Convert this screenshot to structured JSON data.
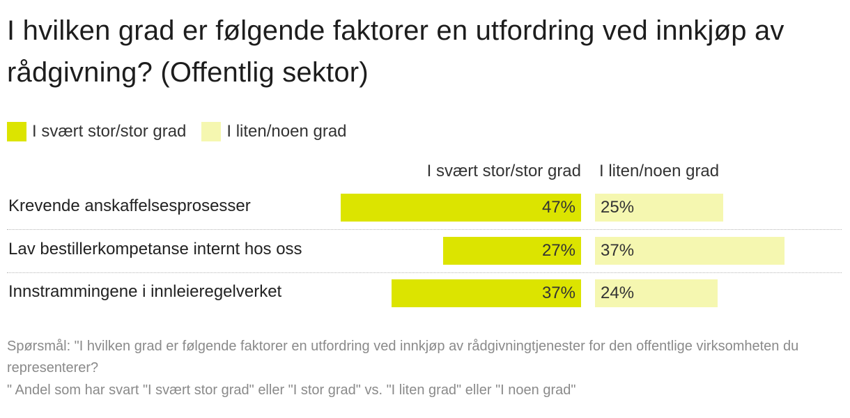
{
  "title": "I hvilken grad er følgende faktorer en utfordring ved innkjøp av rådgivning? (Offentlig sektor)",
  "legend": [
    {
      "label": "I svært stor/stor grad",
      "color": "#dce400"
    },
    {
      "label": "I liten/noen grad",
      "color": "#f5f7b0"
    }
  ],
  "column_headers": {
    "left": "I svært stor/stor grad",
    "right": "I liten/noen grad"
  },
  "chart_data": {
    "type": "bar",
    "categories": [
      "Krevende anskaffelsesprosesser",
      "Lav bestillerkompetanse internt hos oss",
      "Innstrammingene i innleieregelverket"
    ],
    "series": [
      {
        "name": "I svært stor/stor grad",
        "values": [
          47,
          27,
          37
        ],
        "labels": [
          "47%",
          "27%",
          "37%"
        ],
        "color": "#dce400"
      },
      {
        "name": "I liten/noen grad",
        "values": [
          25,
          37,
          24
        ],
        "labels": [
          "25%",
          "37%",
          "24%"
        ],
        "color": "#f5f7b0"
      }
    ],
    "unit": "%"
  },
  "notes": {
    "question": "Spørsmål: \"I hvilken grad er følgende faktorer en utfordring ved innkjøp av rådgivningtjenester for den offentlige virksomheten du representerer?",
    "definition": "\" Andel som har svart \"I svært stor grad\" eller \"I stor grad\" vs. \"I liten grad\" eller \"I noen grad\""
  }
}
